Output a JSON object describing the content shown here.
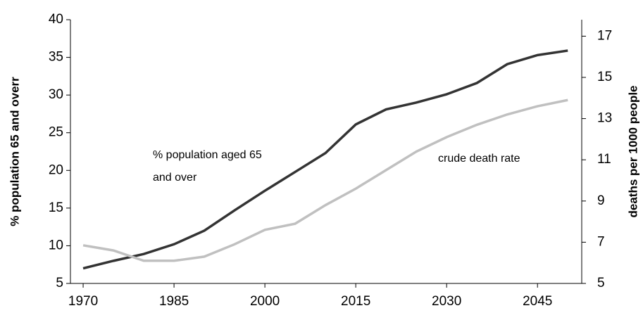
{
  "chart_data": {
    "type": "line",
    "x": [
      1970,
      1975,
      1980,
      1985,
      1990,
      1995,
      2000,
      2005,
      2010,
      2015,
      2020,
      2025,
      2030,
      2035,
      2040,
      2045,
      2050
    ],
    "xlim": [
      1967.9,
      2052.3
    ],
    "xticks": [
      1970,
      1985,
      2000,
      2015,
      2030,
      2045
    ],
    "ylim": [
      5,
      40
    ],
    "yticks": [
      5,
      10,
      15,
      20,
      25,
      30,
      35,
      40
    ],
    "y2lim": [
      5,
      17.8
    ],
    "y2ticks": [
      5,
      7,
      9,
      11,
      13,
      15,
      17
    ],
    "ylabel": "% population 65 and overr",
    "y2label": "deaths per 1000 people",
    "series": [
      {
        "name": "% population aged 65 and over",
        "color": "#333333",
        "values": [
          7,
          8,
          8.9,
          10.2,
          12,
          14.7,
          17.3,
          19.8,
          22.3,
          26.1,
          28.1,
          29,
          30.1,
          31.6,
          34.1,
          35.3,
          35.9
        ]
      },
      {
        "name": "crude death rate",
        "color": "#c0c0c0",
        "axis": "y2",
        "values": [
          6.85,
          6.6,
          6.1,
          6.1,
          6.3,
          6.9,
          7.6,
          7.9,
          8.8,
          9.6,
          10.5,
          11.4,
          12.1,
          12.7,
          13.2,
          13.6,
          13.9
        ]
      }
    ]
  }
}
